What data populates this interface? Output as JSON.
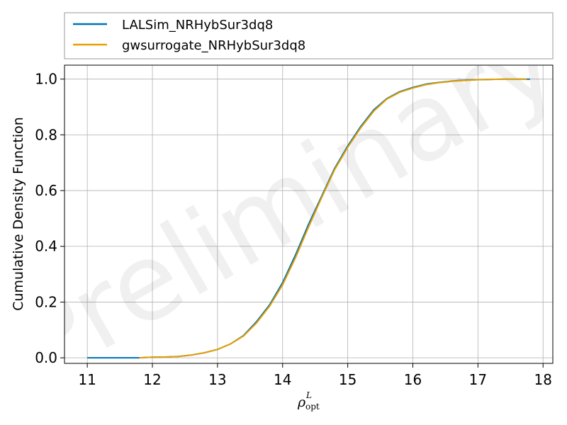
{
  "chart_data": {
    "type": "line",
    "xlabel_symbol": "ρ",
    "xlabel_sup": "L",
    "xlabel_sub": "opt",
    "ylabel": "Cumulative Density Function",
    "xlim": [
      10.65,
      18.15
    ],
    "ylim": [
      -0.02,
      1.05
    ],
    "xticks": [
      11,
      12,
      13,
      14,
      15,
      16,
      17,
      18
    ],
    "yticks": [
      0.0,
      0.2,
      0.4,
      0.6,
      0.8,
      1.0
    ],
    "xtick_labels": [
      "11",
      "12",
      "13",
      "14",
      "15",
      "16",
      "17",
      "18"
    ],
    "ytick_labels": [
      "0.0",
      "0.2",
      "0.4",
      "0.6",
      "0.8",
      "1.0"
    ],
    "grid": true,
    "legend_position": "top (above plot)",
    "watermark": "Preliminary",
    "series": [
      {
        "name": "LALSim_NRHybSur3dq8",
        "color": "#0072B2",
        "x": [
          11.0,
          11.8,
          12.0,
          12.2,
          12.4,
          12.6,
          12.8,
          13.0,
          13.2,
          13.4,
          13.6,
          13.8,
          14.0,
          14.2,
          14.4,
          14.6,
          14.8,
          15.0,
          15.2,
          15.4,
          15.6,
          15.8,
          16.0,
          16.2,
          16.4,
          16.6,
          16.8,
          17.0,
          17.2,
          17.4,
          17.6,
          17.8
        ],
        "y": [
          0.0,
          0.0,
          0.002,
          0.003,
          0.005,
          0.01,
          0.018,
          0.03,
          0.05,
          0.08,
          0.13,
          0.19,
          0.27,
          0.37,
          0.48,
          0.58,
          0.68,
          0.76,
          0.83,
          0.89,
          0.93,
          0.955,
          0.97,
          0.982,
          0.988,
          0.993,
          0.996,
          0.998,
          0.999,
          1.0,
          1.0,
          1.0
        ]
      },
      {
        "name": "gwsurrogate_NRHybSur3dq8",
        "color": "#E69F00",
        "x": [
          11.8,
          12.0,
          12.2,
          12.4,
          12.6,
          12.8,
          13.0,
          13.2,
          13.4,
          13.6,
          13.8,
          14.0,
          14.2,
          14.4,
          14.6,
          14.8,
          15.0,
          15.2,
          15.4,
          15.6,
          15.8,
          16.0,
          16.2,
          16.4,
          16.6,
          16.8,
          17.0,
          17.2,
          17.4,
          17.6,
          17.75
        ],
        "y": [
          0.0,
          0.002,
          0.003,
          0.005,
          0.01,
          0.018,
          0.03,
          0.05,
          0.078,
          0.125,
          0.185,
          0.262,
          0.36,
          0.47,
          0.575,
          0.675,
          0.755,
          0.825,
          0.885,
          0.928,
          0.953,
          0.968,
          0.98,
          0.987,
          0.992,
          0.995,
          0.998,
          0.999,
          1.0,
          1.0,
          1.0
        ]
      }
    ]
  }
}
